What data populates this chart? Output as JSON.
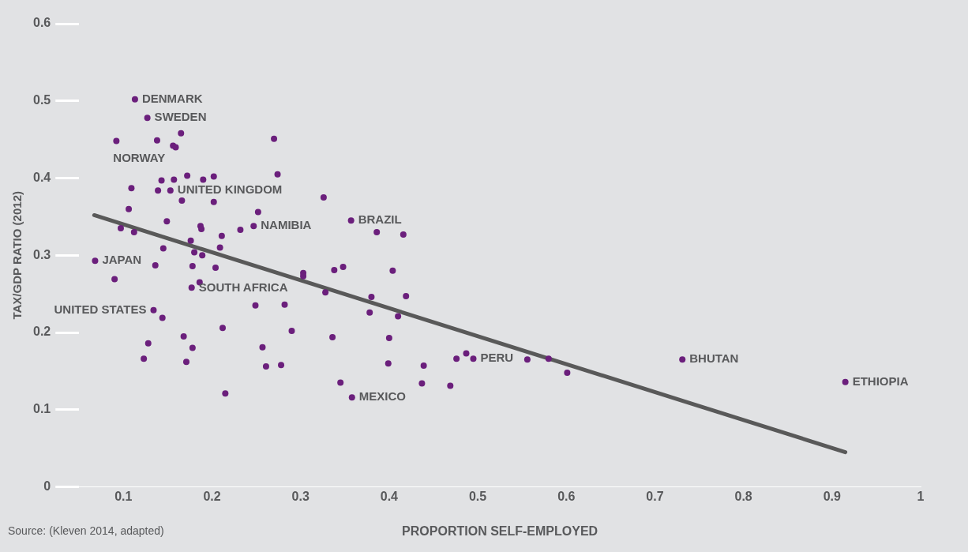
{
  "chart_data": {
    "type": "scatter",
    "xlabel": "PROPORTION SELF-EMPLOYED",
    "ylabel": "TAX/GDP RATIO (2012)",
    "xlim": [
      0.05,
      1.0
    ],
    "xticks": [
      0.1,
      0.2,
      0.3,
      0.4,
      0.5,
      0.6,
      0.7,
      0.8,
      0.9,
      1
    ],
    "ylim": [
      0,
      0.6
    ],
    "yticks": [
      0,
      0.1,
      0.2,
      0.3,
      0.4,
      0.5,
      0.6
    ],
    "grid": false,
    "legend": false,
    "marker": "circle",
    "series": [
      {
        "color": "#6b1f7c",
        "x": [
          0.113,
          0.127,
          0.165,
          0.092,
          0.138,
          0.156,
          0.159,
          0.27,
          0.143,
          0.157,
          0.172,
          0.19,
          0.202,
          0.274,
          0.109,
          0.139,
          0.153,
          0.166,
          0.202,
          0.326,
          0.106,
          0.252,
          0.149,
          0.357,
          0.187,
          0.188,
          0.232,
          0.247,
          0.097,
          0.112,
          0.211,
          0.176,
          0.209,
          0.145,
          0.068,
          0.136,
          0.18,
          0.189,
          0.178,
          0.204,
          0.09,
          0.186,
          0.177,
          0.303,
          0.303,
          0.338,
          0.348,
          0.328,
          0.249,
          0.282,
          0.134,
          0.144,
          0.212,
          0.29,
          0.336,
          0.168,
          0.128,
          0.178,
          0.257,
          0.123,
          0.171,
          0.261,
          0.278,
          0.345,
          0.215,
          0.358,
          0.386,
          0.416,
          0.404,
          0.38,
          0.419,
          0.378,
          0.41,
          0.4,
          0.399,
          0.439,
          0.476,
          0.487,
          0.495,
          0.556,
          0.58,
          0.601,
          0.731,
          0.915,
          0.437,
          0.469
        ],
        "values": [
          0.502,
          0.478,
          0.458,
          0.448,
          0.449,
          0.442,
          0.44,
          0.451,
          0.397,
          0.398,
          0.403,
          0.398,
          0.402,
          0.405,
          0.387,
          0.384,
          0.384,
          0.371,
          0.369,
          0.375,
          0.36,
          0.356,
          0.344,
          0.345,
          0.338,
          0.334,
          0.333,
          0.338,
          0.335,
          0.33,
          0.325,
          0.319,
          0.31,
          0.309,
          0.293,
          0.287,
          0.304,
          0.3,
          0.286,
          0.284,
          0.269,
          0.265,
          0.258,
          0.277,
          0.273,
          0.281,
          0.285,
          0.252,
          0.235,
          0.236,
          0.229,
          0.219,
          0.206,
          0.202,
          0.194,
          0.195,
          0.186,
          0.18,
          0.181,
          0.166,
          0.162,
          0.156,
          0.158,
          0.135,
          0.121,
          0.116,
          0.33,
          0.327,
          0.28,
          0.246,
          0.247,
          0.226,
          0.221,
          0.193,
          0.16,
          0.157,
          0.166,
          0.173,
          0.166,
          0.165,
          0.166,
          0.148,
          0.165,
          0.136,
          0.134,
          0.131
        ]
      },
      {
        "type": "line",
        "color": "#595959",
        "marker": "none",
        "x": [
          0.067,
          0.915
        ],
        "values": [
          0.352,
          0.045
        ]
      }
    ],
    "annotations": [
      {
        "text": "DENMARK",
        "x": 0.113,
        "y": 0.502
      },
      {
        "text": "SWEDEN",
        "x": 0.127,
        "y": 0.478
      },
      {
        "text": "NORWAY",
        "x": 0.092,
        "y": 0.448
      },
      {
        "text": "UNITED KINGDOM",
        "x": 0.153,
        "y": 0.384
      },
      {
        "text": "BRAZIL",
        "x": 0.357,
        "y": 0.345
      },
      {
        "text": "NAMIBIA",
        "x": 0.247,
        "y": 0.338
      },
      {
        "text": "JAPAN",
        "x": 0.068,
        "y": 0.293
      },
      {
        "text": "SOUTH AFRICA",
        "x": 0.177,
        "y": 0.258
      },
      {
        "text": "UNITED STATES",
        "x": 0.134,
        "y": 0.229
      },
      {
        "text": "PERU",
        "x": 0.495,
        "y": 0.166
      },
      {
        "text": "MEXICO",
        "x": 0.358,
        "y": 0.116
      },
      {
        "text": "BHUTAN",
        "x": 0.731,
        "y": 0.165
      },
      {
        "text": "ETHIOPIA",
        "x": 0.915,
        "y": 0.136
      },
      "Source: (Kleven 2014, adapted)"
    ]
  }
}
